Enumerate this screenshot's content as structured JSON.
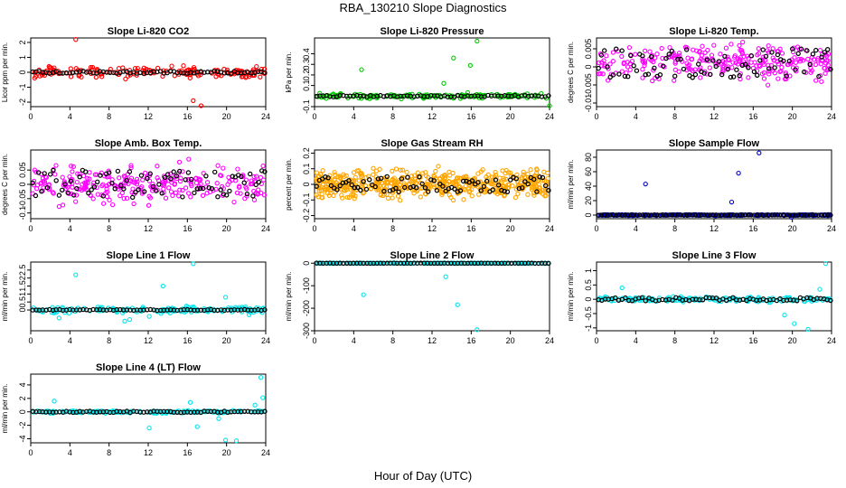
{
  "figure": {
    "title": "RBA_130210  Slope Diagnostics",
    "xlabel": "Hour of Day (UTC)"
  },
  "chart_data": [
    {
      "type": "scatter",
      "title": "Slope Li-820 CO2",
      "ylabel": "Licor ppm per min.",
      "xlim": [
        0,
        24
      ],
      "xticks": [
        0,
        4,
        8,
        12,
        16,
        20,
        24
      ],
      "ylim": [
        -2.3,
        2.3
      ],
      "yticks": [
        -2,
        -1,
        0,
        1,
        2
      ],
      "series_colors": {
        "all": "#ff0000",
        "hourly": "#000000"
      },
      "dense": {
        "center": 0.0,
        "spread": 0.3,
        "count": 160
      },
      "outliers": [
        {
          "x": 4.6,
          "y": 2.2
        },
        {
          "x": 16.6,
          "y": -1.9
        },
        {
          "x": 17.4,
          "y": -2.3
        }
      ],
      "hourly": {
        "amp": 0.08,
        "count": 70
      }
    },
    {
      "type": "scatter",
      "title": "Slope Li-820 Pressure",
      "ylabel": "kPa per min.",
      "xlim": [
        0,
        24
      ],
      "xticks": [
        0,
        4,
        8,
        12,
        16,
        20,
        24
      ],
      "ylim": [
        -0.1,
        0.55
      ],
      "yticks": [
        -0.1,
        0.1,
        0.2,
        0.3,
        0.4
      ],
      "series_colors": {
        "all": "#00cc00",
        "hourly": "#000000"
      },
      "dense": {
        "center": 0.0,
        "spread": 0.02,
        "count": 150
      },
      "outliers": [
        {
          "x": 4.8,
          "y": 0.25
        },
        {
          "x": 13.2,
          "y": 0.12
        },
        {
          "x": 14.2,
          "y": 0.36
        },
        {
          "x": 15.9,
          "y": 0.29
        },
        {
          "x": 16.6,
          "y": 0.52
        },
        {
          "x": 24.0,
          "y": -0.1
        }
      ],
      "hourly": {
        "amp": 0.008,
        "count": 70
      }
    },
    {
      "type": "scatter",
      "title": "Slope Li-820 Temp.",
      "ylabel": "degrees C per min.",
      "xlim": [
        0,
        24
      ],
      "xticks": [
        0,
        4,
        8,
        12,
        16,
        20,
        24
      ],
      "ylim": [
        -0.011,
        0.008
      ],
      "yticks": [
        -0.01,
        -0.005,
        0.0,
        0.005
      ],
      "series_colors": {
        "all": "#ff00ff",
        "hourly": "#000000"
      },
      "dense": {
        "center": 0.001,
        "spread": 0.004,
        "count": 260
      },
      "outliers": [],
      "hourly": {
        "amp": 0.004,
        "count": 80
      }
    },
    {
      "type": "scatter",
      "title": "Slope Amb. Box Temp.",
      "ylabel": "degrees C per min.",
      "xlim": [
        0,
        24
      ],
      "xticks": [
        0,
        4,
        8,
        12,
        16,
        20,
        24
      ],
      "ylim": [
        -0.12,
        0.12
      ],
      "yticks": [
        -0.1,
        -0.05,
        0.0,
        0.05
      ],
      "series_colors": {
        "all": "#ff00ff",
        "hourly": "#000000"
      },
      "dense": {
        "center": 0.0,
        "spread": 0.05,
        "count": 260
      },
      "outliers": [],
      "hourly": {
        "amp": 0.05,
        "count": 80
      }
    },
    {
      "type": "scatter",
      "title": "Slope Gas Stream RH",
      "ylabel": "percent per min.",
      "xlim": [
        0,
        24
      ],
      "xticks": [
        0,
        4,
        8,
        12,
        16,
        20,
        24
      ],
      "ylim": [
        -0.22,
        0.22
      ],
      "yticks": [
        -0.2,
        -0.1,
        0.0,
        0.1,
        0.2
      ],
      "series_colors": {
        "all": "#ffa500",
        "hourly": "#000000"
      },
      "dense": {
        "center": 0.0,
        "spread": 0.07,
        "count": 520
      },
      "outliers": [],
      "hourly": {
        "amp": 0.05,
        "count": 80
      }
    },
    {
      "type": "scatter",
      "title": "Slope Sample Flow",
      "ylabel": "ml/min per min.",
      "xlim": [
        0,
        24
      ],
      "xticks": [
        0,
        4,
        8,
        12,
        16,
        20,
        24
      ],
      "ylim": [
        -5,
        90
      ],
      "yticks": [
        0,
        20,
        40,
        60,
        80
      ],
      "series_colors": {
        "all": "#0000cc",
        "hourly": "#000000"
      },
      "dense": {
        "center": 0.0,
        "spread": 0.6,
        "count": 260
      },
      "outliers": [
        {
          "x": 5.0,
          "y": 43
        },
        {
          "x": 13.8,
          "y": 18
        },
        {
          "x": 14.5,
          "y": 58
        },
        {
          "x": 16.6,
          "y": 86
        },
        {
          "x": 19.9,
          "y": -3
        }
      ],
      "hourly": {
        "amp": 0.3,
        "count": 80
      }
    },
    {
      "type": "scatter",
      "title": "Slope Line 1 Flow",
      "ylabel": "ml/min per min.",
      "xlim": [
        0,
        24
      ],
      "xticks": [
        0,
        4,
        8,
        12,
        16,
        20,
        24
      ],
      "ylim": [
        -1.3,
        3.0
      ],
      "yticks": [
        0.0,
        0.5,
        1.0,
        1.5,
        2.0,
        2.5
      ],
      "series_colors": {
        "all": "#00e5ee",
        "hourly": "#000000"
      },
      "dense": {
        "center": 0.0,
        "spread": 0.15,
        "count": 160
      },
      "outliers": [
        {
          "x": 2.9,
          "y": -0.5
        },
        {
          "x": 4.6,
          "y": 2.2
        },
        {
          "x": 9.6,
          "y": -0.7
        },
        {
          "x": 10.1,
          "y": -0.6
        },
        {
          "x": 12.1,
          "y": -0.4
        },
        {
          "x": 13.5,
          "y": 1.5
        },
        {
          "x": 16.6,
          "y": 2.9
        },
        {
          "x": 19.9,
          "y": 0.8
        },
        {
          "x": 22.3,
          "y": -0.3
        }
      ],
      "hourly": {
        "amp": 0.03,
        "count": 70
      }
    },
    {
      "type": "scatter",
      "title": "Slope Line 2 Flow",
      "ylabel": "ml/min per min.",
      "xlim": [
        0,
        24
      ],
      "xticks": [
        0,
        4,
        8,
        12,
        16,
        20,
        24
      ],
      "ylim": [
        -300,
        5
      ],
      "yticks": [
        -300,
        -200,
        -100,
        0
      ],
      "series_colors": {
        "all": "#00e5ee",
        "hourly": "#000000"
      },
      "dense": {
        "center": 0.0,
        "spread": 1.0,
        "count": 160
      },
      "outliers": [
        {
          "x": 5.0,
          "y": -140
        },
        {
          "x": 13.4,
          "y": -60
        },
        {
          "x": 14.6,
          "y": -185
        },
        {
          "x": 16.6,
          "y": -295
        }
      ],
      "hourly": {
        "amp": 0.5,
        "count": 70
      }
    },
    {
      "type": "scatter",
      "title": "Slope Line 3 Flow",
      "ylabel": "ml/min per min.",
      "xlim": [
        0,
        24
      ],
      "xticks": [
        0,
        4,
        8,
        12,
        16,
        20,
        24
      ],
      "ylim": [
        -1.1,
        1.3
      ],
      "yticks": [
        -1.0,
        -0.5,
        0.0,
        0.5,
        1.0
      ],
      "series_colors": {
        "all": "#00e5ee",
        "hourly": "#000000"
      },
      "dense": {
        "center": 0.0,
        "spread": 0.07,
        "count": 160
      },
      "outliers": [
        {
          "x": 2.6,
          "y": 0.4
        },
        {
          "x": 19.2,
          "y": -0.55
        },
        {
          "x": 20.2,
          "y": -0.85
        },
        {
          "x": 21.6,
          "y": -1.05
        },
        {
          "x": 23.4,
          "y": 1.25
        },
        {
          "x": 22.8,
          "y": 0.35
        }
      ],
      "hourly": {
        "amp": 0.06,
        "count": 70
      }
    },
    {
      "type": "scatter",
      "title": "Slope Line 4 (LT) Flow",
      "ylabel": "ml/min per min.",
      "xlim": [
        0,
        24
      ],
      "xticks": [
        0,
        4,
        8,
        12,
        16,
        20,
        24
      ],
      "ylim": [
        -4.6,
        5.6
      ],
      "yticks": [
        -4,
        -2,
        0,
        2,
        4
      ],
      "series_colors": {
        "all": "#00e5ee",
        "hourly": "#000000"
      },
      "dense": {
        "center": 0.0,
        "spread": 0.15,
        "count": 160
      },
      "outliers": [
        {
          "x": 2.4,
          "y": 1.6
        },
        {
          "x": 12.1,
          "y": -2.4
        },
        {
          "x": 16.3,
          "y": 1.4
        },
        {
          "x": 17.0,
          "y": -2.2
        },
        {
          "x": 19.2,
          "y": -1.0
        },
        {
          "x": 19.9,
          "y": -4.2
        },
        {
          "x": 21.0,
          "y": -4.3
        },
        {
          "x": 23.5,
          "y": 5.1
        },
        {
          "x": 23.7,
          "y": 2.1
        },
        {
          "x": 22.9,
          "y": 1.0
        }
      ],
      "hourly": {
        "amp": 0.1,
        "count": 70
      }
    }
  ]
}
